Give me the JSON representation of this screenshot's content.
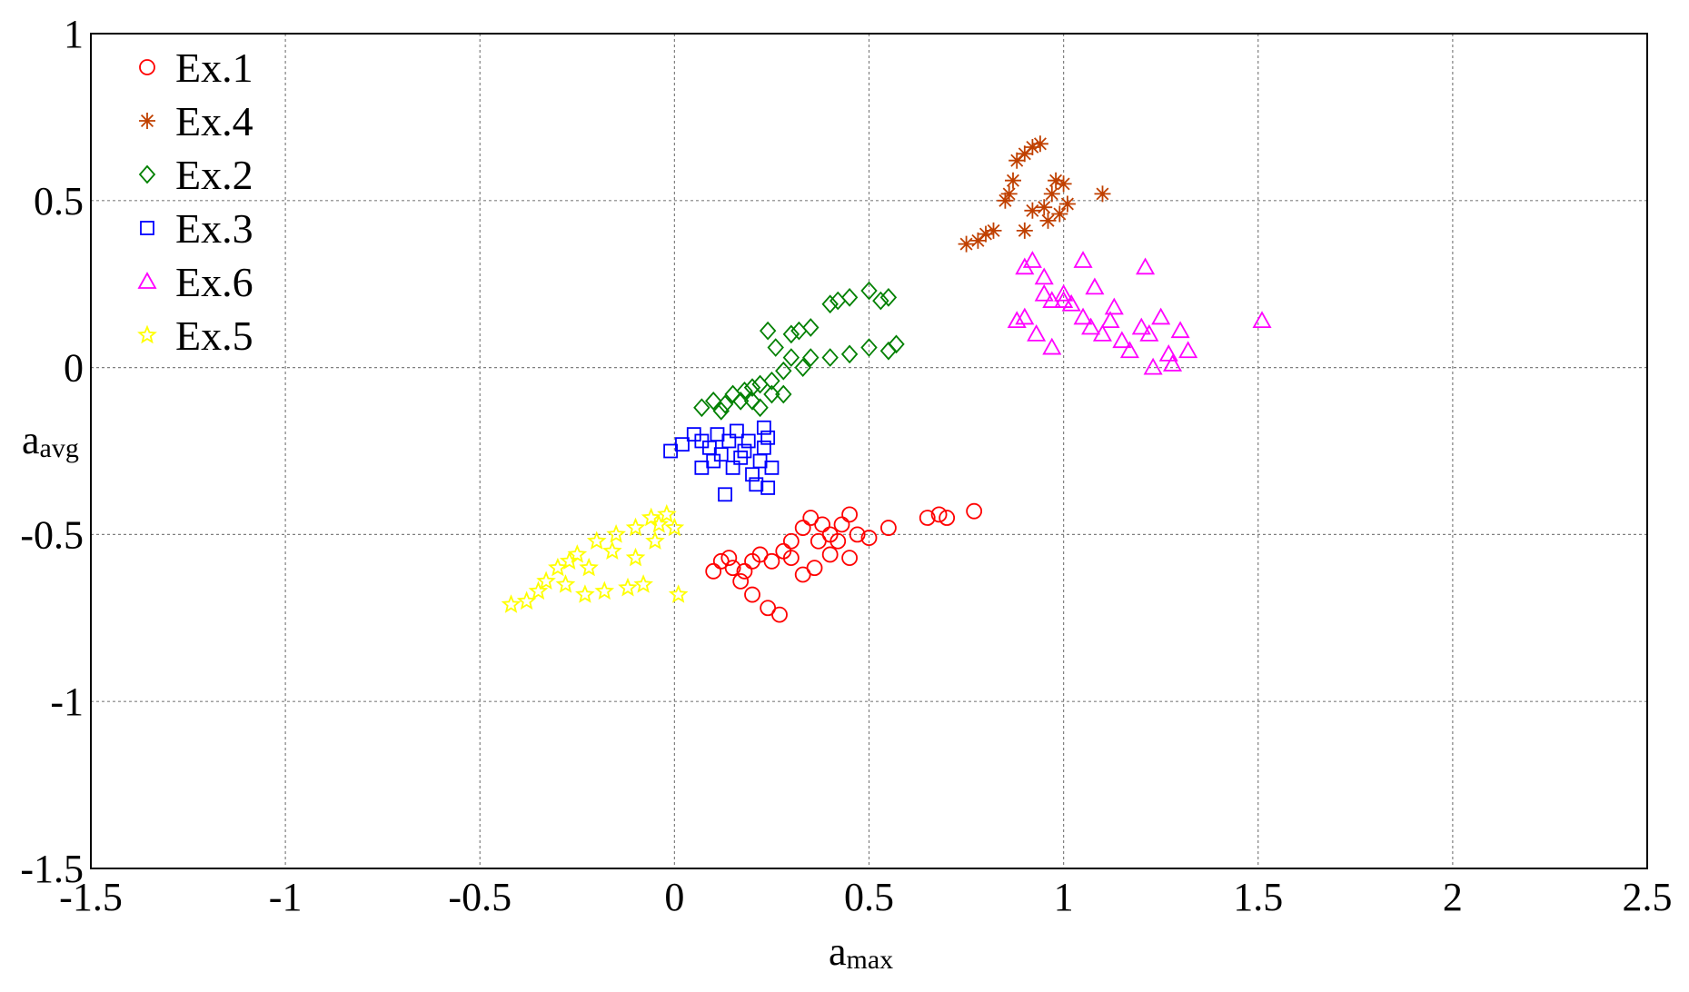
{
  "chart_data": {
    "type": "scatter",
    "xlabel": {
      "base": "a",
      "sub": "max"
    },
    "ylabel": {
      "base": "a",
      "sub": "avg"
    },
    "xlim": [
      -1.5,
      2.5
    ],
    "ylim": [
      -1.5,
      1
    ],
    "xticks": [
      "-1.5",
      "-1",
      "-0.5",
      "0",
      "0.5",
      "1",
      "1.5",
      "2",
      "2.5"
    ],
    "yticks": [
      "-1.5",
      "-1",
      "-0.5",
      "0",
      "0.5",
      "1"
    ],
    "grid": true,
    "legend_position": "top-left",
    "series": [
      {
        "name": "Ex.1",
        "color": "#ff0000",
        "marker": "circle",
        "points": [
          [
            0.1,
            -0.61
          ],
          [
            0.12,
            -0.58
          ],
          [
            0.15,
            -0.6
          ],
          [
            0.17,
            -0.64
          ],
          [
            0.2,
            -0.58
          ],
          [
            0.22,
            -0.56
          ],
          [
            0.25,
            -0.58
          ],
          [
            0.28,
            -0.55
          ],
          [
            0.3,
            -0.52
          ],
          [
            0.33,
            -0.48
          ],
          [
            0.35,
            -0.45
          ],
          [
            0.38,
            -0.47
          ],
          [
            0.4,
            -0.5
          ],
          [
            0.42,
            -0.52
          ],
          [
            0.45,
            -0.44
          ],
          [
            0.47,
            -0.5
          ],
          [
            0.5,
            -0.51
          ],
          [
            0.55,
            -0.48
          ],
          [
            0.65,
            -0.45
          ],
          [
            0.68,
            -0.44
          ],
          [
            0.7,
            -0.45
          ],
          [
            0.77,
            -0.43
          ],
          [
            0.2,
            -0.68
          ],
          [
            0.24,
            -0.72
          ],
          [
            0.27,
            -0.74
          ],
          [
            0.33,
            -0.62
          ],
          [
            0.36,
            -0.6
          ],
          [
            0.3,
            -0.57
          ],
          [
            0.4,
            -0.56
          ],
          [
            0.45,
            -0.57
          ],
          [
            0.18,
            -0.61
          ],
          [
            0.14,
            -0.57
          ],
          [
            0.37,
            -0.52
          ],
          [
            0.43,
            -0.47
          ]
        ]
      },
      {
        "name": "Ex.4",
        "color": "#c04000",
        "marker": "asterisk",
        "points": [
          [
            0.75,
            0.37
          ],
          [
            0.78,
            0.38
          ],
          [
            0.8,
            0.4
          ],
          [
            0.82,
            0.41
          ],
          [
            0.85,
            0.5
          ],
          [
            0.87,
            0.56
          ],
          [
            0.88,
            0.62
          ],
          [
            0.9,
            0.64
          ],
          [
            0.92,
            0.66
          ],
          [
            0.94,
            0.67
          ],
          [
            0.95,
            0.48
          ],
          [
            0.97,
            0.52
          ],
          [
            0.99,
            0.46
          ],
          [
            1.0,
            0.55
          ],
          [
            1.01,
            0.49
          ],
          [
            0.9,
            0.41
          ],
          [
            0.92,
            0.47
          ],
          [
            0.96,
            0.44
          ],
          [
            0.86,
            0.52
          ],
          [
            0.98,
            0.56
          ],
          [
            1.1,
            0.52
          ]
        ]
      },
      {
        "name": "Ex.2",
        "color": "#008000",
        "marker": "diamond",
        "points": [
          [
            0.07,
            -0.12
          ],
          [
            0.1,
            -0.1
          ],
          [
            0.13,
            -0.11
          ],
          [
            0.15,
            -0.08
          ],
          [
            0.18,
            -0.07
          ],
          [
            0.2,
            -0.06
          ],
          [
            0.22,
            -0.05
          ],
          [
            0.25,
            -0.04
          ],
          [
            0.28,
            -0.01
          ],
          [
            0.3,
            0.03
          ],
          [
            0.26,
            0.06
          ],
          [
            0.3,
            0.1
          ],
          [
            0.32,
            0.11
          ],
          [
            0.35,
            0.12
          ],
          [
            0.4,
            0.19
          ],
          [
            0.42,
            0.2
          ],
          [
            0.45,
            0.21
          ],
          [
            0.5,
            0.23
          ],
          [
            0.53,
            0.2
          ],
          [
            0.55,
            0.21
          ],
          [
            0.57,
            0.07
          ],
          [
            0.5,
            0.06
          ],
          [
            0.45,
            0.04
          ],
          [
            0.4,
            0.03
          ],
          [
            0.35,
            0.03
          ],
          [
            0.2,
            -0.1
          ],
          [
            0.25,
            -0.08
          ],
          [
            0.22,
            -0.12
          ],
          [
            0.17,
            -0.1
          ],
          [
            0.12,
            -0.13
          ],
          [
            0.33,
            0.0
          ],
          [
            0.24,
            0.11
          ],
          [
            0.55,
            0.05
          ],
          [
            0.28,
            -0.08
          ]
        ]
      },
      {
        "name": "Ex.3",
        "color": "#0000ff",
        "marker": "square",
        "points": [
          [
            -0.01,
            -0.25
          ],
          [
            0.02,
            -0.23
          ],
          [
            0.05,
            -0.2
          ],
          [
            0.07,
            -0.22
          ],
          [
            0.09,
            -0.24
          ],
          [
            0.1,
            -0.28
          ],
          [
            0.12,
            -0.26
          ],
          [
            0.14,
            -0.22
          ],
          [
            0.15,
            -0.3
          ],
          [
            0.17,
            -0.27
          ],
          [
            0.18,
            -0.25
          ],
          [
            0.2,
            -0.32
          ],
          [
            0.22,
            -0.28
          ],
          [
            0.23,
            -0.24
          ],
          [
            0.24,
            -0.21
          ],
          [
            0.25,
            -0.3
          ],
          [
            0.13,
            -0.38
          ],
          [
            0.21,
            -0.35
          ],
          [
            0.24,
            -0.36
          ],
          [
            0.07,
            -0.3
          ],
          [
            0.11,
            -0.2
          ],
          [
            0.16,
            -0.19
          ],
          [
            0.19,
            -0.22
          ],
          [
            0.23,
            -0.18
          ]
        ]
      },
      {
        "name": "Ex.6",
        "color": "#ff00ff",
        "marker": "triangle",
        "points": [
          [
            0.9,
            0.3
          ],
          [
            0.92,
            0.32
          ],
          [
            0.95,
            0.27
          ],
          [
            0.97,
            0.2
          ],
          [
            1.0,
            0.22
          ],
          [
            1.02,
            0.19
          ],
          [
            1.05,
            0.15
          ],
          [
            1.07,
            0.12
          ],
          [
            1.1,
            0.1
          ],
          [
            1.12,
            0.14
          ],
          [
            1.15,
            0.08
          ],
          [
            1.17,
            0.05
          ],
          [
            1.2,
            0.12
          ],
          [
            1.22,
            0.1
          ],
          [
            1.25,
            0.15
          ],
          [
            1.27,
            0.04
          ],
          [
            1.3,
            0.11
          ],
          [
            1.32,
            0.05
          ],
          [
            0.9,
            0.15
          ],
          [
            0.93,
            0.1
          ],
          [
            0.97,
            0.06
          ],
          [
            1.05,
            0.32
          ],
          [
            1.0,
            0.2
          ],
          [
            0.88,
            0.14
          ],
          [
            1.21,
            0.3
          ],
          [
            1.51,
            0.14
          ],
          [
            1.23,
            0.0
          ],
          [
            1.13,
            0.18
          ],
          [
            1.08,
            0.24
          ],
          [
            0.95,
            0.22
          ],
          [
            1.28,
            0.01
          ]
        ]
      },
      {
        "name": "Ex.5",
        "color": "#ffff00",
        "marker": "star",
        "points": [
          [
            -0.42,
            -0.71
          ],
          [
            -0.38,
            -0.7
          ],
          [
            -0.35,
            -0.67
          ],
          [
            -0.33,
            -0.64
          ],
          [
            -0.3,
            -0.6
          ],
          [
            -0.28,
            -0.65
          ],
          [
            -0.25,
            -0.56
          ],
          [
            -0.23,
            -0.68
          ],
          [
            -0.2,
            -0.52
          ],
          [
            -0.18,
            -0.67
          ],
          [
            -0.15,
            -0.5
          ],
          [
            -0.12,
            -0.66
          ],
          [
            -0.1,
            -0.48
          ],
          [
            -0.08,
            -0.65
          ],
          [
            -0.06,
            -0.45
          ],
          [
            -0.04,
            -0.47
          ],
          [
            -0.02,
            -0.44
          ],
          [
            0.0,
            -0.48
          ],
          [
            0.01,
            -0.68
          ],
          [
            -0.16,
            -0.55
          ],
          [
            -0.22,
            -0.6
          ],
          [
            -0.27,
            -0.58
          ],
          [
            -0.1,
            -0.57
          ],
          [
            -0.05,
            -0.52
          ]
        ]
      }
    ]
  }
}
